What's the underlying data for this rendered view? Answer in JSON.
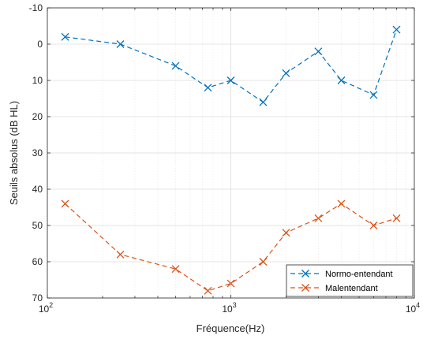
{
  "chart_data": {
    "type": "line",
    "title": "",
    "xlabel": "Fréquence(Hz)",
    "ylabel": "Seuils absolus (dB HL)",
    "x_scale": "log",
    "xlim": [
      100,
      10000
    ],
    "ylim": [
      -10,
      70
    ],
    "y_reversed": true,
    "x_ticks": [
      {
        "base": "10",
        "exp": "2"
      },
      {
        "base": "10",
        "exp": "3"
      },
      {
        "base": "10",
        "exp": "4"
      }
    ],
    "y_ticks": [
      "-10",
      "0",
      "10",
      "20",
      "30",
      "40",
      "50",
      "60",
      "70"
    ],
    "grid": true,
    "legend_position": "bottom-right",
    "x": [
      125,
      250,
      500,
      750,
      1000,
      1500,
      2000,
      3000,
      4000,
      6000,
      8000
    ],
    "series": [
      {
        "name": "Normo-entendant",
        "color": "#0072bd",
        "values": [
          -2,
          0,
          6,
          12,
          10,
          16,
          8,
          2,
          10,
          14,
          -4
        ]
      },
      {
        "name": "Malentendant",
        "color": "#d95319",
        "values": [
          44,
          58,
          62,
          68,
          66,
          60,
          52,
          48,
          44,
          50,
          48
        ]
      }
    ]
  }
}
